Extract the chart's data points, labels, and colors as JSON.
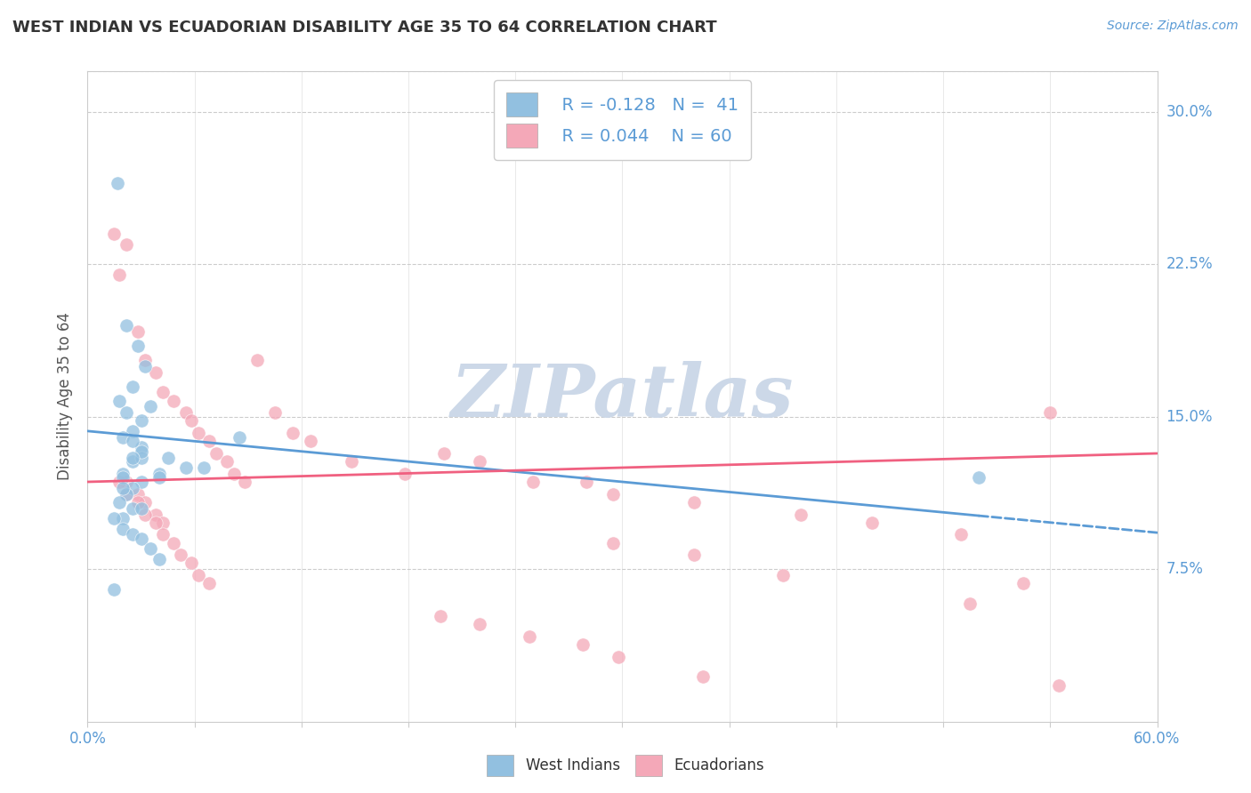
{
  "title": "WEST INDIAN VS ECUADORIAN DISABILITY AGE 35 TO 64 CORRELATION CHART",
  "source_text": "Source: ZipAtlas.com",
  "ylabel": "Disability Age 35 to 64",
  "xmin": 0.0,
  "xmax": 0.6,
  "ymin": 0.0,
  "ymax": 0.32,
  "ytick_positions": [
    0.075,
    0.15,
    0.225,
    0.3
  ],
  "ytick_labels": [
    "7.5%",
    "15.0%",
    "22.5%",
    "30.0%"
  ],
  "color_blue": "#92C0E0",
  "color_pink": "#F4A8B8",
  "color_blue_line": "#5b9bd5",
  "color_pink_line": "#F06080",
  "trend_blue_x0": 0.0,
  "trend_blue_y0": 0.143,
  "trend_blue_x1": 0.6,
  "trend_blue_y1": 0.093,
  "trend_blue_solid_end": 0.5,
  "trend_pink_x0": 0.0,
  "trend_pink_y0": 0.118,
  "trend_pink_x1": 0.6,
  "trend_pink_y1": 0.132,
  "background_color": "#ffffff",
  "grid_color": "#cccccc",
  "watermark_color": "#ccd8e8",
  "west_indians_x": [
    0.017,
    0.022,
    0.028,
    0.032,
    0.025,
    0.018,
    0.022,
    0.03,
    0.025,
    0.02,
    0.03,
    0.025,
    0.02,
    0.04,
    0.055,
    0.065,
    0.085,
    0.035,
    0.04,
    0.03,
    0.025,
    0.022,
    0.018,
    0.025,
    0.03,
    0.02,
    0.015,
    0.02,
    0.025,
    0.03,
    0.035,
    0.04,
    0.025,
    0.045,
    0.03,
    0.5,
    0.015,
    0.02,
    0.03,
    0.025,
    0.02
  ],
  "west_indians_y": [
    0.265,
    0.195,
    0.185,
    0.175,
    0.165,
    0.158,
    0.152,
    0.148,
    0.143,
    0.14,
    0.135,
    0.128,
    0.122,
    0.122,
    0.125,
    0.125,
    0.14,
    0.155,
    0.12,
    0.118,
    0.115,
    0.112,
    0.108,
    0.105,
    0.105,
    0.1,
    0.1,
    0.095,
    0.092,
    0.09,
    0.085,
    0.08,
    0.138,
    0.13,
    0.13,
    0.12,
    0.065,
    0.12,
    0.133,
    0.13,
    0.115
  ],
  "ecuadorians_x": [
    0.015,
    0.018,
    0.022,
    0.028,
    0.032,
    0.038,
    0.042,
    0.048,
    0.055,
    0.058,
    0.062,
    0.068,
    0.072,
    0.078,
    0.082,
    0.088,
    0.095,
    0.105,
    0.115,
    0.125,
    0.022,
    0.028,
    0.032,
    0.038,
    0.042,
    0.018,
    0.022,
    0.028,
    0.032,
    0.038,
    0.042,
    0.048,
    0.052,
    0.058,
    0.062,
    0.068,
    0.2,
    0.22,
    0.25,
    0.28,
    0.295,
    0.34,
    0.4,
    0.44,
    0.49,
    0.54,
    0.295,
    0.34,
    0.39,
    0.525,
    0.148,
    0.178,
    0.198,
    0.22,
    0.248,
    0.278,
    0.298,
    0.345,
    0.545,
    0.495
  ],
  "ecuadorians_y": [
    0.24,
    0.22,
    0.235,
    0.192,
    0.178,
    0.172,
    0.162,
    0.158,
    0.152,
    0.148,
    0.142,
    0.138,
    0.132,
    0.128,
    0.122,
    0.118,
    0.178,
    0.152,
    0.142,
    0.138,
    0.118,
    0.112,
    0.108,
    0.102,
    0.098,
    0.118,
    0.112,
    0.108,
    0.102,
    0.098,
    0.092,
    0.088,
    0.082,
    0.078,
    0.072,
    0.068,
    0.132,
    0.128,
    0.118,
    0.118,
    0.112,
    0.108,
    0.102,
    0.098,
    0.092,
    0.152,
    0.088,
    0.082,
    0.072,
    0.068,
    0.128,
    0.122,
    0.052,
    0.048,
    0.042,
    0.038,
    0.032,
    0.022,
    0.018,
    0.058
  ]
}
